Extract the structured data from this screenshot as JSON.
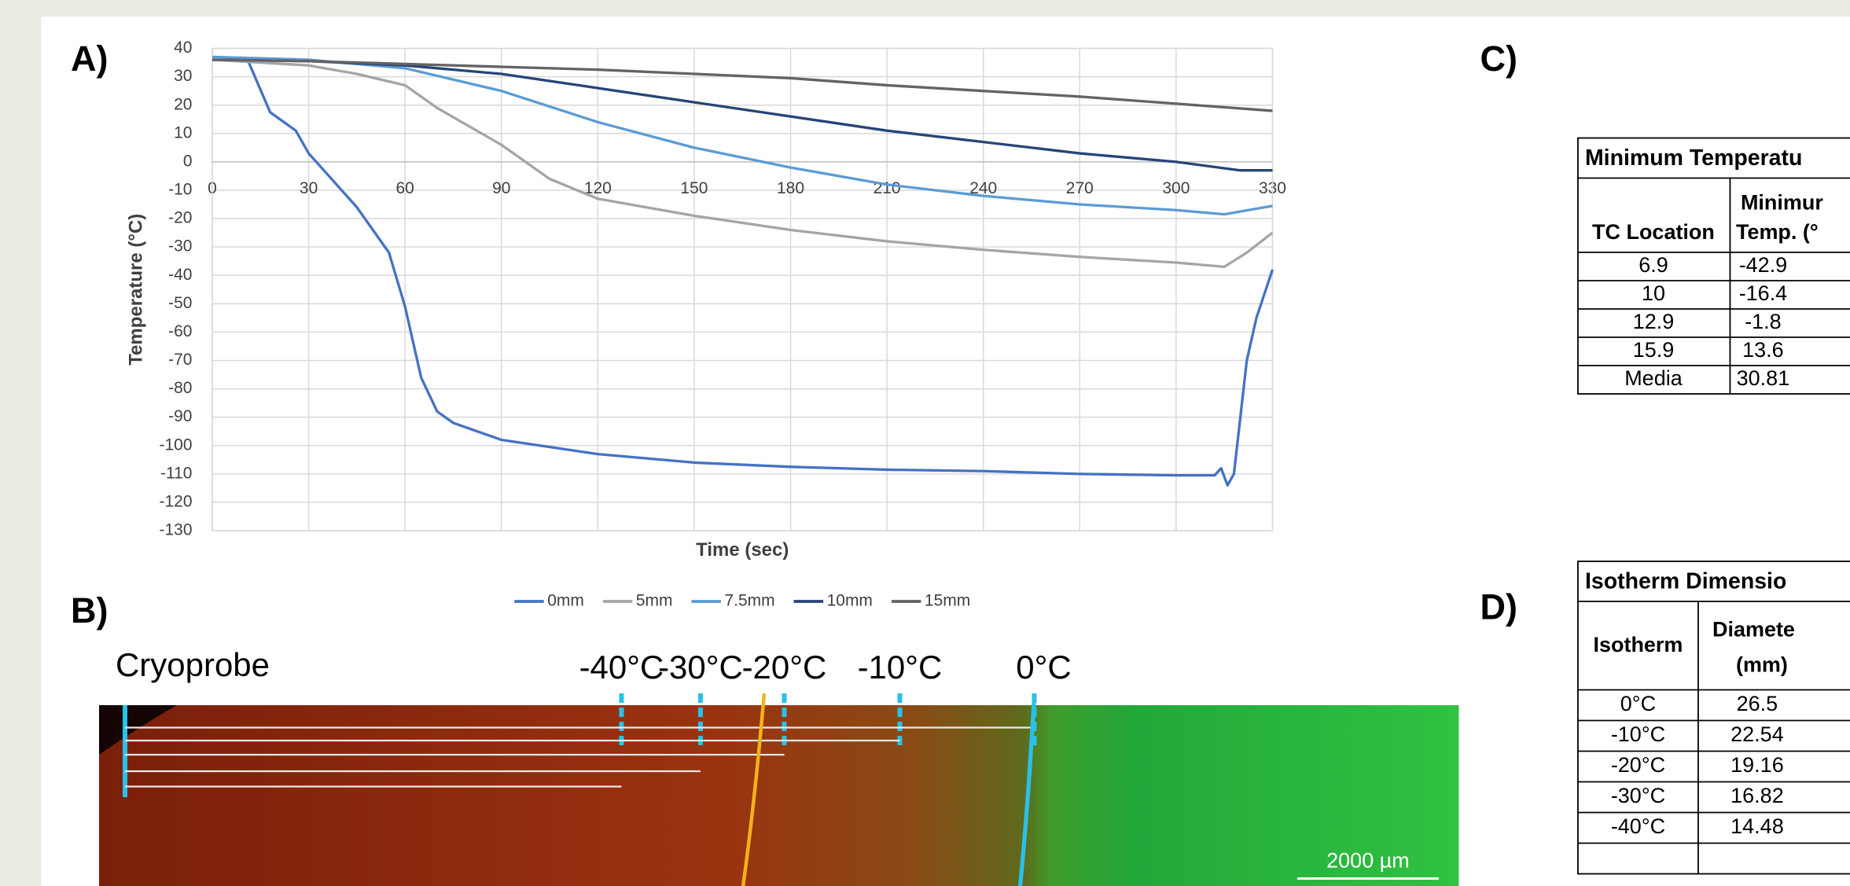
{
  "chart_data": {
    "type": "line",
    "panel_label": "A)",
    "xlabel": "Time (sec)",
    "ylabel": "Temperature (°C)",
    "xlim": [
      0,
      330
    ],
    "ylim": [
      -130,
      40
    ],
    "xticks": [
      0,
      30,
      60,
      90,
      120,
      150,
      180,
      210,
      240,
      270,
      300,
      330
    ],
    "yticks": [
      40,
      30,
      20,
      10,
      0,
      -10,
      -20,
      -30,
      -40,
      -50,
      -60,
      -70,
      -80,
      -90,
      -100,
      -110,
      -120,
      -130
    ],
    "grid": true,
    "legend": "bottom",
    "series": [
      {
        "name": "0mm",
        "color": "#4472c4",
        "x": [
          0,
          11,
          18,
          26,
          30,
          45,
          55,
          60,
          65,
          70,
          75,
          90,
          120,
          150,
          180,
          210,
          240,
          270,
          300,
          312,
          314,
          315,
          316,
          318,
          320,
          322,
          325,
          330
        ],
        "values": [
          36,
          36,
          17.5,
          11,
          3,
          -16,
          -32,
          -51,
          -76,
          -88,
          -92,
          -98,
          -103,
          -106,
          -107.5,
          -108.5,
          -109,
          -110,
          -110.5,
          -110.5,
          -108,
          -111,
          -114,
          -110,
          -90,
          -70,
          -55,
          -38
        ]
      },
      {
        "name": "5mm",
        "color": "#a5a5a5",
        "x": [
          0,
          15,
          30,
          45,
          60,
          70,
          90,
          105,
          120,
          150,
          180,
          210,
          240,
          270,
          300,
          315,
          322,
          330
        ],
        "values": [
          36,
          35,
          34,
          31,
          27,
          19,
          6,
          -6,
          -13,
          -19,
          -24,
          -28,
          -31,
          -33.5,
          -35.5,
          -37,
          -32,
          -25
        ]
      },
      {
        "name": "7.5mm",
        "color": "#5b9bd5",
        "x": [
          0,
          30,
          60,
          90,
          120,
          150,
          180,
          210,
          240,
          270,
          300,
          315,
          330
        ],
        "values": [
          37,
          36,
          33,
          25,
          14,
          5,
          -2,
          -8,
          -12,
          -15,
          -17,
          -18.5,
          -15.5
        ]
      },
      {
        "name": "10mm",
        "color": "#264478",
        "x": [
          0,
          30,
          60,
          90,
          120,
          150,
          180,
          210,
          240,
          270,
          300,
          320,
          330
        ],
        "values": [
          36,
          35.5,
          34,
          31,
          26,
          21,
          16,
          11,
          7,
          3,
          0,
          -3,
          -3
        ]
      },
      {
        "name": "15mm",
        "color": "#636363",
        "x": [
          0,
          30,
          60,
          90,
          120,
          150,
          180,
          210,
          240,
          270,
          300,
          330
        ],
        "values": [
          36,
          35.5,
          34.5,
          33.5,
          32.5,
          31,
          29.5,
          27,
          25,
          23,
          20.5,
          18
        ]
      }
    ]
  },
  "panel_b": {
    "panel_label": "B)",
    "probe_label": "Cryoprobe",
    "isotherm_labels": [
      "-40°C",
      "-30°C",
      "-20°C",
      "-10°C",
      "0°C"
    ],
    "scale_bar": "2000 µm"
  },
  "panel_c": {
    "panel_label": "C)",
    "title": "Minimum Temperatu",
    "header": [
      "TC Location",
      "Minimur",
      "Temp. (°"
    ],
    "rows": [
      [
        "6.9",
        "-42.9"
      ],
      [
        "10",
        "-16.4"
      ],
      [
        "12.9",
        "-1.8"
      ],
      [
        "15.9",
        "13.6"
      ],
      [
        "Media",
        "30.81"
      ]
    ]
  },
  "panel_d": {
    "panel_label": "D)",
    "title": "Isotherm Dimensio",
    "header": [
      "Isotherm",
      "Diamete",
      "(mm)"
    ],
    "rows": [
      [
        "0°C",
        "26.5"
      ],
      [
        "-10°C",
        "22.54"
      ],
      [
        "-20°C",
        "19.16"
      ],
      [
        "-30°C",
        "16.82"
      ],
      [
        "-40°C",
        "14.48"
      ]
    ]
  }
}
